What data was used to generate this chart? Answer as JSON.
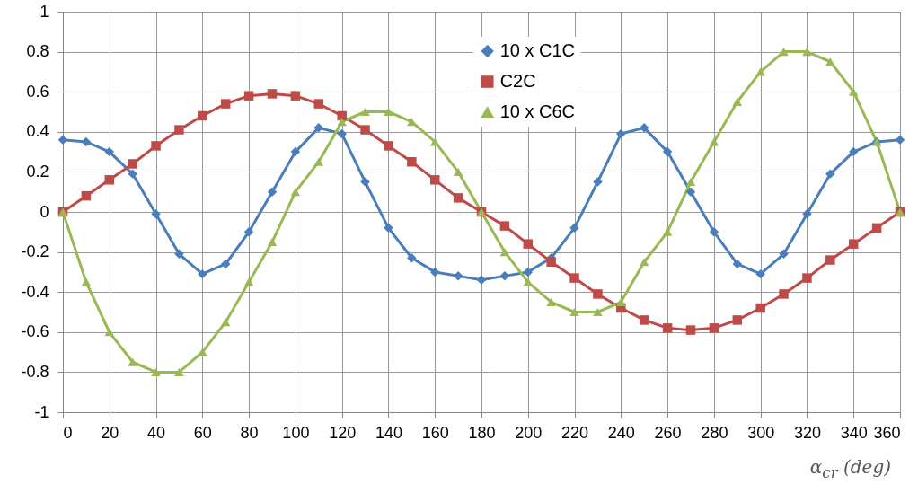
{
  "chart_data": {
    "type": "line",
    "xlabel": "α$_{cr}$ (deg)",
    "x": [
      0,
      10,
      20,
      30,
      40,
      50,
      60,
      70,
      80,
      90,
      100,
      110,
      120,
      130,
      140,
      150,
      160,
      170,
      180,
      190,
      200,
      210,
      220,
      230,
      240,
      250,
      260,
      270,
      280,
      290,
      300,
      310,
      320,
      330,
      340,
      350,
      360
    ],
    "series": [
      {
        "name": "10 x C1C",
        "color": "#4a7ebb",
        "marker": "diamond",
        "values": [
          0.36,
          0.35,
          0.3,
          0.19,
          -0.01,
          -0.21,
          -0.31,
          -0.26,
          -0.1,
          0.1,
          0.3,
          0.42,
          0.39,
          0.15,
          -0.08,
          -0.23,
          -0.3,
          -0.32,
          -0.34,
          -0.32,
          -0.3,
          -0.23,
          -0.08,
          0.15,
          0.39,
          0.42,
          0.3,
          0.1,
          -0.1,
          -0.26,
          -0.31,
          -0.21,
          -0.01,
          0.19,
          0.3,
          0.35,
          0.36
        ]
      },
      {
        "name": "C2C",
        "color": "#be4b48",
        "marker": "square",
        "values": [
          0,
          0.08,
          0.16,
          0.24,
          0.33,
          0.41,
          0.48,
          0.54,
          0.58,
          0.59,
          0.58,
          0.54,
          0.48,
          0.41,
          0.33,
          0.25,
          0.16,
          0.07,
          0,
          -0.07,
          -0.16,
          -0.25,
          -0.33,
          -0.41,
          -0.48,
          -0.54,
          -0.58,
          -0.59,
          -0.58,
          -0.54,
          -0.48,
          -0.41,
          -0.33,
          -0.24,
          -0.16,
          -0.08,
          0
        ]
      },
      {
        "name": "10 x C6C",
        "color": "#98b954",
        "marker": "triangle",
        "values": [
          0,
          -0.35,
          -0.6,
          -0.75,
          -0.8,
          -0.8,
          -0.7,
          -0.55,
          -0.35,
          -0.15,
          0.1,
          0.25,
          0.45,
          0.5,
          0.5,
          0.45,
          0.35,
          0.2,
          0,
          -0.2,
          -0.35,
          -0.45,
          -0.5,
          -0.5,
          -0.45,
          -0.25,
          -0.1,
          0.15,
          0.35,
          0.55,
          0.7,
          0.8,
          0.8,
          0.75,
          0.6,
          0.35,
          0
        ]
      }
    ],
    "xlim": [
      0,
      360
    ],
    "xticks": [
      0,
      20,
      40,
      60,
      80,
      100,
      120,
      140,
      160,
      180,
      200,
      220,
      240,
      260,
      280,
      300,
      320,
      340,
      360
    ],
    "ylim": [
      -1,
      1
    ],
    "yticks": [
      -1,
      -0.8,
      -0.6,
      -0.4,
      -0.2,
      0,
      0.2,
      0.4,
      0.6,
      0.8,
      1
    ],
    "grid": true,
    "legend": "top right"
  }
}
